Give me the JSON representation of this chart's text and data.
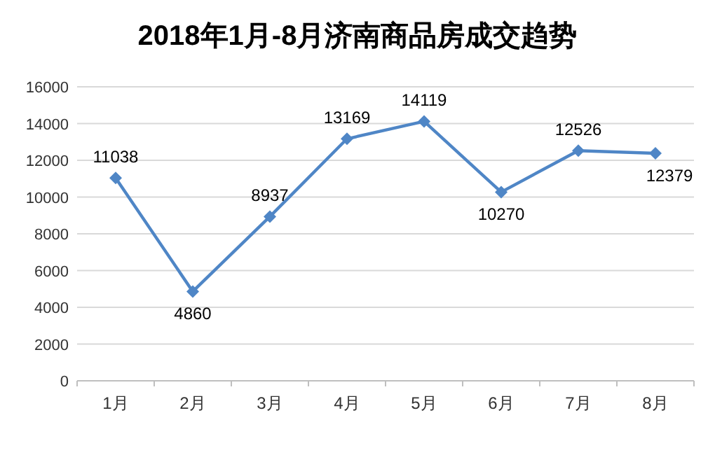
{
  "chart_data": {
    "type": "line",
    "title": "2018年1月-8月济南商品房成交趋势",
    "categories": [
      "1月",
      "2月",
      "3月",
      "4月",
      "5月",
      "6月",
      "7月",
      "8月"
    ],
    "series": [
      {
        "color": "#4f86c6",
        "values": [
          11038,
          4860,
          8937,
          13169,
          14119,
          10270,
          12526,
          12379
        ]
      }
    ],
    "ylim": [
      0,
      16000
    ],
    "yticks": [
      0,
      2000,
      4000,
      6000,
      8000,
      10000,
      12000,
      14000,
      16000
    ],
    "grid": "y",
    "marker": "diamond",
    "data_labels": true
  }
}
